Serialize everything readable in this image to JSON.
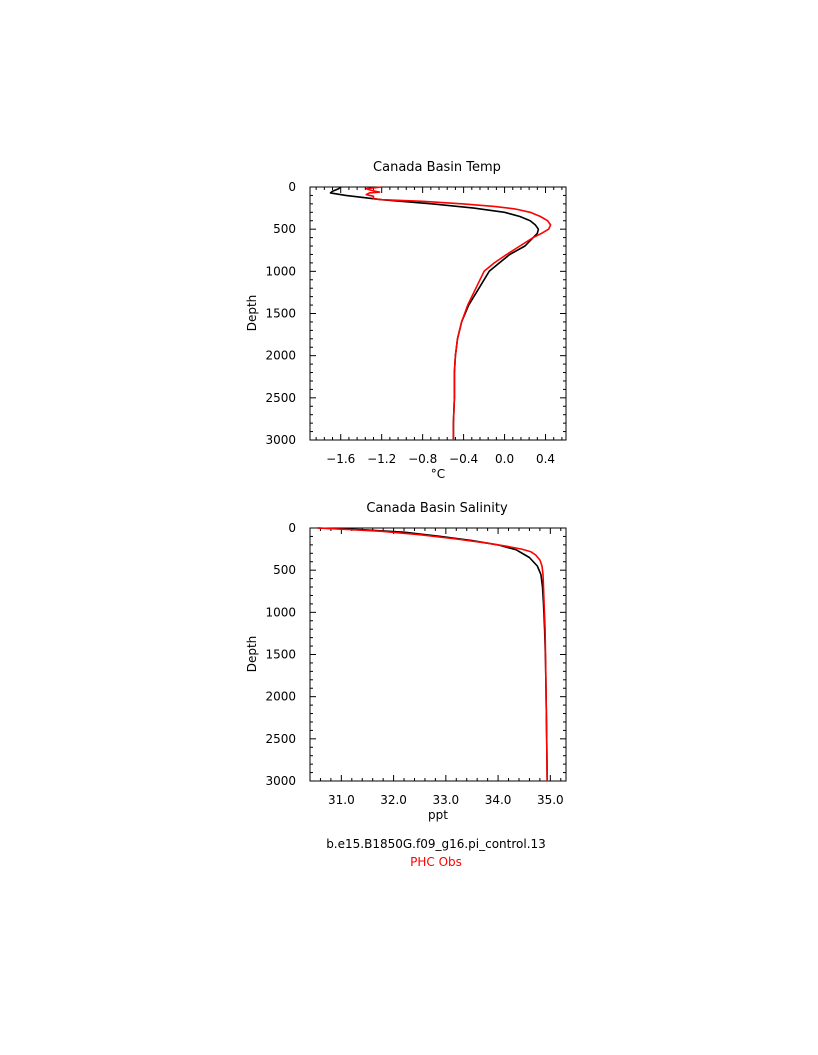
{
  "chart_data": [
    {
      "type": "line",
      "title": "Canada Basin Temp",
      "xlabel": "°C",
      "ylabel": "Depth",
      "xlim": [
        -1.9,
        0.6
      ],
      "ylim": [
        3000,
        0
      ],
      "y_inverted": true,
      "xticks": [
        -1.6,
        -1.2,
        -0.8,
        -0.4,
        0.0,
        0.4
      ],
      "xtick_labels": [
        "−1.6",
        "−1.2",
        "−0.8",
        "−0.4",
        "0.0",
        "0.4"
      ],
      "yticks": [
        0,
        500,
        1000,
        1500,
        2000,
        2500,
        3000
      ],
      "ytick_labels": [
        "0",
        "500",
        "1000",
        "1500",
        "2000",
        "2500",
        "3000"
      ],
      "grid": false,
      "series": [
        {
          "name": "b.e15.B1850G.f09_g16.pi_control.13",
          "color": "#000000",
          "points": [
            [
              -1.6,
              0
            ],
            [
              -1.62,
              20
            ],
            [
              -1.68,
              50
            ],
            [
              -1.7,
              70
            ],
            [
              -1.55,
              100
            ],
            [
              -1.2,
              150
            ],
            [
              -0.7,
              200
            ],
            [
              -0.3,
              250
            ],
            [
              0.0,
              300
            ],
            [
              0.15,
              350
            ],
            [
              0.25,
              400
            ],
            [
              0.3,
              450
            ],
            [
              0.33,
              500
            ],
            [
              0.32,
              550
            ],
            [
              0.28,
              600
            ],
            [
              0.2,
              700
            ],
            [
              0.05,
              800
            ],
            [
              -0.05,
              900
            ],
            [
              -0.15,
              1000
            ],
            [
              -0.25,
              1200
            ],
            [
              -0.35,
              1400
            ],
            [
              -0.42,
              1600
            ],
            [
              -0.46,
              1800
            ],
            [
              -0.48,
              2000
            ],
            [
              -0.49,
              2200
            ],
            [
              -0.49,
              2500
            ],
            [
              -0.5,
              2800
            ],
            [
              -0.5,
              3000
            ]
          ]
        },
        {
          "name": "PHC Obs",
          "color": "#ff0000",
          "points": [
            [
              -1.2,
              0
            ],
            [
              -1.35,
              20
            ],
            [
              -1.3,
              40
            ],
            [
              -1.22,
              60
            ],
            [
              -1.32,
              70
            ],
            [
              -1.35,
              90
            ],
            [
              -1.28,
              110
            ],
            [
              -1.28,
              140
            ],
            [
              -1.2,
              150
            ],
            [
              -0.8,
              170
            ],
            [
              -0.4,
              200
            ],
            [
              -0.1,
              230
            ],
            [
              0.1,
              260
            ],
            [
              0.25,
              300
            ],
            [
              0.35,
              350
            ],
            [
              0.42,
              400
            ],
            [
              0.45,
              450
            ],
            [
              0.43,
              500
            ],
            [
              0.36,
              550
            ],
            [
              0.28,
              600
            ],
            [
              0.15,
              700
            ],
            [
              0.02,
              800
            ],
            [
              -0.1,
              900
            ],
            [
              -0.2,
              1000
            ],
            [
              -0.28,
              1200
            ],
            [
              -0.36,
              1400
            ],
            [
              -0.42,
              1600
            ],
            [
              -0.46,
              1800
            ],
            [
              -0.48,
              2000
            ],
            [
              -0.49,
              2200
            ],
            [
              -0.49,
              2500
            ],
            [
              -0.5,
              2800
            ],
            [
              -0.5,
              3000
            ]
          ]
        }
      ]
    },
    {
      "type": "line",
      "title": "Canada Basin Salinity",
      "xlabel": "ppt",
      "ylabel": "Depth",
      "xlim": [
        30.4,
        35.3
      ],
      "ylim": [
        3000,
        0
      ],
      "y_inverted": true,
      "xticks": [
        31.0,
        32.0,
        33.0,
        34.0,
        35.0
      ],
      "xtick_labels": [
        "31.0",
        "32.0",
        "33.0",
        "34.0",
        "35.0"
      ],
      "yticks": [
        0,
        500,
        1000,
        1500,
        2000,
        2500,
        3000
      ],
      "ytick_labels": [
        "0",
        "500",
        "1000",
        "1500",
        "2000",
        "2500",
        "3000"
      ],
      "grid": false,
      "series": [
        {
          "name": "b.e15.B1850G.f09_g16.pi_control.13",
          "color": "#000000",
          "points": [
            [
              30.55,
              0
            ],
            [
              31.4,
              20
            ],
            [
              32.2,
              50
            ],
            [
              32.9,
              100
            ],
            [
              33.5,
              150
            ],
            [
              34.0,
              200
            ],
            [
              34.35,
              260
            ],
            [
              34.6,
              350
            ],
            [
              34.75,
              450
            ],
            [
              34.82,
              550
            ],
            [
              34.85,
              700
            ],
            [
              34.87,
              900
            ],
            [
              34.89,
              1200
            ],
            [
              34.91,
              1600
            ],
            [
              34.92,
              2000
            ],
            [
              34.93,
              2500
            ],
            [
              34.94,
              3000
            ]
          ]
        },
        {
          "name": "PHC Obs",
          "color": "#ff0000",
          "points": [
            [
              30.55,
              0
            ],
            [
              31.2,
              20
            ],
            [
              31.8,
              40
            ],
            [
              32.5,
              80
            ],
            [
              33.2,
              130
            ],
            [
              33.8,
              180
            ],
            [
              34.2,
              220
            ],
            [
              34.45,
              250
            ],
            [
              34.62,
              280
            ],
            [
              34.72,
              320
            ],
            [
              34.8,
              380
            ],
            [
              34.84,
              450
            ],
            [
              34.86,
              550
            ],
            [
              34.87,
              700
            ],
            [
              34.88,
              900
            ],
            [
              34.9,
              1200
            ],
            [
              34.91,
              1600
            ],
            [
              34.92,
              2000
            ],
            [
              34.93,
              2500
            ],
            [
              34.94,
              3000
            ]
          ]
        }
      ]
    }
  ],
  "legend": {
    "placement": "bottom-center",
    "entries": [
      {
        "label": "b.e15.B1850G.f09_g16.pi_control.13",
        "color": "#000000"
      },
      {
        "label": "PHC Obs",
        "color": "#ff0000"
      }
    ]
  }
}
